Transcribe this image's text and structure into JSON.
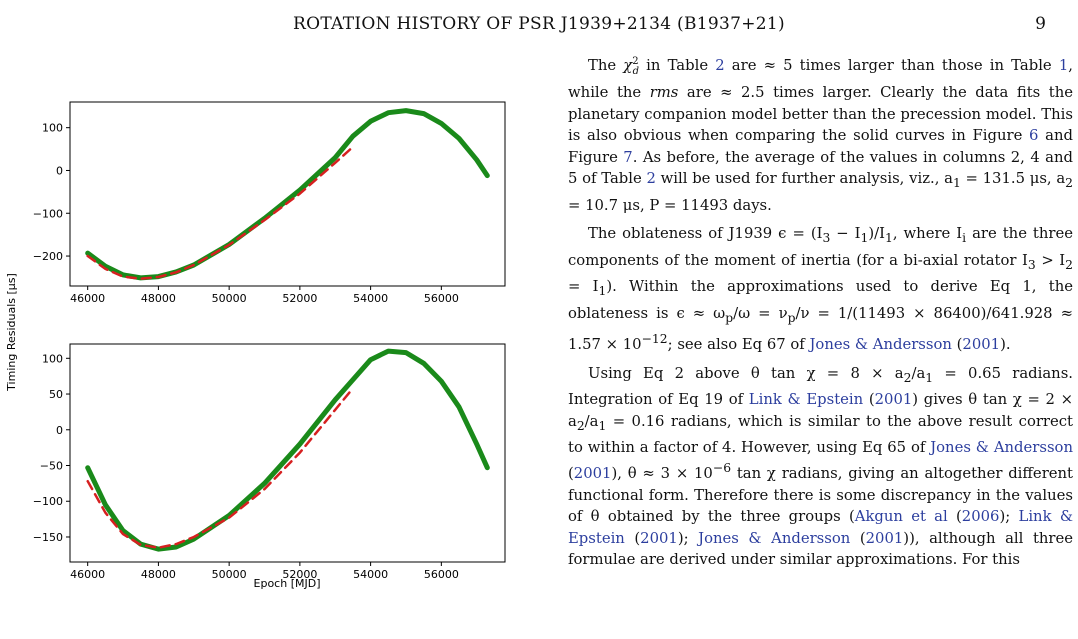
{
  "header": {
    "title": "ROTATION HISTORY OF PSR J1939+2134 (B1937+21)",
    "page_number": "9"
  },
  "figure": {
    "ylabel": "Timing Residuals [μs]",
    "xlabel": "Epoch [MJD]"
  },
  "chart_data": [
    {
      "type": "line",
      "panel": "top",
      "xlim": [
        45500,
        57800
      ],
      "ylim": [
        -270,
        160
      ],
      "xticks": [
        46000,
        48000,
        50000,
        52000,
        54000,
        56000
      ],
      "yticks": [
        100,
        0,
        -100,
        -200
      ],
      "series": [
        {
          "color": "#1a8a1a",
          "style": "solid-thick",
          "x": [
            46000,
            46500,
            47000,
            47500,
            48000,
            48500,
            49000,
            50000,
            51000,
            52000,
            53000,
            53500,
            54000,
            54500,
            55000,
            55500,
            56000,
            56500,
            57000,
            57300
          ],
          "y": [
            -193,
            -224,
            -244,
            -251,
            -248,
            -237,
            -221,
            -173,
            -112,
            -46,
            30,
            80,
            115,
            135,
            140,
            133,
            110,
            75,
            25,
            -12
          ]
        },
        {
          "color": "#d62020",
          "style": "dashed",
          "x": [
            46000,
            46500,
            47000,
            47500,
            48000,
            48500,
            49000,
            50000,
            51000,
            52000,
            53000,
            53500
          ],
          "y": [
            -200,
            -230,
            -248,
            -253,
            -249,
            -238,
            -221,
            -174,
            -116,
            -54,
            18,
            55
          ]
        }
      ]
    },
    {
      "type": "line",
      "panel": "bottom",
      "xlim": [
        45500,
        57800
      ],
      "ylim": [
        -185,
        120
      ],
      "xticks": [
        46000,
        48000,
        50000,
        52000,
        54000,
        56000
      ],
      "yticks": [
        100,
        50,
        0,
        -50,
        -100,
        -150
      ],
      "series": [
        {
          "color": "#1a8a1a",
          "style": "solid-thick",
          "x": [
            46000,
            46500,
            47000,
            47500,
            48000,
            48500,
            49000,
            50000,
            51000,
            52000,
            53000,
            54000,
            54500,
            55000,
            55500,
            56000,
            56500,
            57000,
            57300
          ],
          "y": [
            -53,
            -105,
            -141,
            -160,
            -167,
            -164,
            -153,
            -120,
            -75,
            -20,
            42,
            98,
            110,
            108,
            93,
            68,
            32,
            -20,
            -53
          ]
        },
        {
          "color": "#d62020",
          "style": "dashed",
          "x": [
            46000,
            46500,
            47000,
            47500,
            48000,
            48500,
            49000,
            50000,
            51000,
            52000,
            53000,
            53500
          ],
          "y": [
            -72,
            -116,
            -146,
            -161,
            -165,
            -160,
            -150,
            -123,
            -83,
            -32,
            28,
            58
          ]
        }
      ]
    }
  ],
  "text": {
    "p1": {
      "a": "The ",
      "chi": "χ",
      "chi_sub": "d",
      "chi_sup": "2",
      "b": " in Table ",
      "t2": "2",
      "c": " are ≈ 5 times larger than those in Table ",
      "t1": "1",
      "d": ", while the ",
      "rms": "rms",
      "e": " are ≈ 2.5 times larger. Clearly the data fits the planetary companion model better than the precession model. This is also obvious when comparing the solid curves in Figure ",
      "f6": "6",
      "f": " and Figure ",
      "f7": "7",
      "g": ". As before, the average of the values in columns 2, 4 and 5 of Table ",
      "t2b": "2",
      "h": " will be used for further analysis, viz., a",
      "a1s": "1",
      "i": " = 131.5 μs, a",
      "a2s": "2",
      "j": " = 10.7 μs, P = 11493 days."
    },
    "p2": {
      "a": "The oblateness of J1939 ϵ = (I",
      "s3": "3",
      "b": " − I",
      "s1": "1",
      "c": ")/I",
      "s1b": "1",
      "d": ", where I",
      "si": "i",
      "e": " are the three components of the moment of inertia (for a bi-axial rotator I",
      "s3b": "3",
      "f": " > I",
      "s2": "2",
      "g": " = I",
      "s1c": "1",
      "h": "). Within the approximations used to derive Eq 1, the oblateness is ϵ ≈ ω",
      "sp": "p",
      "i": "/ω = ν",
      "sp2": "p",
      "j": "/ν = 1/(11493 × 86400)/641.928 ≈ 1.57 × 10",
      "exp": "−12",
      "k": "; see also Eq 67 of ",
      "cite1": "Jones & Andersson",
      "l": " (",
      "cite1y": "2001",
      "m": ")."
    },
    "p3": {
      "a": "Using Eq 2 above θ tan χ = 8 × a",
      "s2": "2",
      "b": "/a",
      "s1": "1",
      "c": " = 0.65 radians. Integration of Eq 19 of ",
      "cite1": "Link & Epstein",
      "d": " (",
      "cite1y": "2001",
      "e": ") gives θ tan χ = 2 × a",
      "s2b": "2",
      "f": "/a",
      "s1b": "1",
      "g": " = 0.16 radians, which is similar to the above result correct to within a factor of 4. However, using Eq 65 of ",
      "cite2": "Jones & Andersson",
      "h": " (",
      "cite2y": "2001",
      "i": "), θ ≈ 3 × 10",
      "exp": "−6",
      "j": " tan χ radians, giving an altogether different functional form. Therefore there is some discrepancy in the values of θ obtained by the three groups (",
      "cite3": "Akgun et al",
      "k": " (",
      "cite3y": "2006",
      "l": "); ",
      "cite4": "Link & Epstein",
      "m": " (",
      "cite4y": "2001",
      "n": "); ",
      "cite5": "Jones & Andersson",
      "o": " (",
      "cite5y": "2001",
      "p": ")), although all three formulae are derived under similar approximations. For this"
    }
  }
}
